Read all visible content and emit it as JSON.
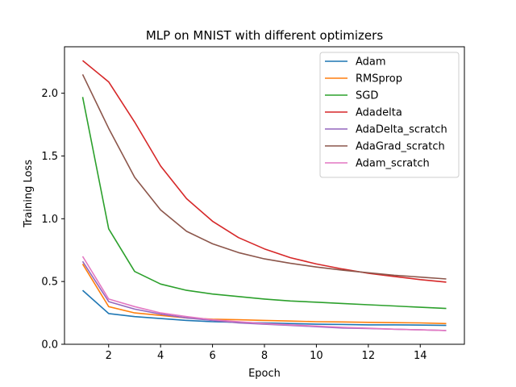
{
  "chart_data": {
    "type": "line",
    "title": "MLP on MNIST with different optimizers",
    "xlabel": "Epoch",
    "ylabel": "Training Loss",
    "xlim": [
      0.3,
      15.7
    ],
    "ylim": [
      0.0,
      2.37
    ],
    "xticks": [
      2,
      4,
      6,
      8,
      10,
      12,
      14
    ],
    "yticks": [
      0.0,
      0.5,
      1.0,
      1.5,
      2.0
    ],
    "grid": false,
    "legend_position": "top-right",
    "x": [
      1,
      2,
      3,
      4,
      5,
      6,
      7,
      8,
      9,
      10,
      11,
      12,
      13,
      14,
      15
    ],
    "series": [
      {
        "name": "Adam",
        "color": "#1f77b4",
        "values": [
          0.43,
          0.245,
          0.22,
          0.205,
          0.19,
          0.18,
          0.175,
          0.17,
          0.165,
          0.16,
          0.158,
          0.155,
          0.155,
          0.153,
          0.15
        ]
      },
      {
        "name": "RMSprop",
        "color": "#ff7f0e",
        "values": [
          0.64,
          0.3,
          0.25,
          0.23,
          0.21,
          0.2,
          0.195,
          0.19,
          0.185,
          0.18,
          0.178,
          0.175,
          0.172,
          0.17,
          0.165
        ]
      },
      {
        "name": "SGD",
        "color": "#2ca02c",
        "values": [
          1.97,
          0.92,
          0.58,
          0.48,
          0.43,
          0.4,
          0.38,
          0.36,
          0.345,
          0.335,
          0.325,
          0.315,
          0.305,
          0.295,
          0.285
        ]
      },
      {
        "name": "Adadelta",
        "color": "#d62728",
        "values": [
          2.26,
          2.09,
          1.77,
          1.42,
          1.16,
          0.98,
          0.85,
          0.76,
          0.69,
          0.64,
          0.6,
          0.565,
          0.54,
          0.515,
          0.495
        ]
      },
      {
        "name": "AdaDelta_scratch",
        "color": "#9467bd",
        "values": [
          0.66,
          0.34,
          0.28,
          0.24,
          0.21,
          0.19,
          0.17,
          0.16,
          0.15,
          0.14,
          0.13,
          0.125,
          0.12,
          0.115,
          0.11
        ]
      },
      {
        "name": "AdaGrad_scratch",
        "color": "#8c564b",
        "values": [
          2.15,
          1.72,
          1.33,
          1.07,
          0.9,
          0.8,
          0.73,
          0.68,
          0.645,
          0.615,
          0.59,
          0.57,
          0.55,
          0.535,
          0.52
        ]
      },
      {
        "name": "Adam_scratch",
        "color": "#e377c2",
        "values": [
          0.7,
          0.36,
          0.3,
          0.25,
          0.22,
          0.195,
          0.18,
          0.165,
          0.155,
          0.145,
          0.135,
          0.128,
          0.12,
          0.115,
          0.11
        ]
      }
    ]
  }
}
